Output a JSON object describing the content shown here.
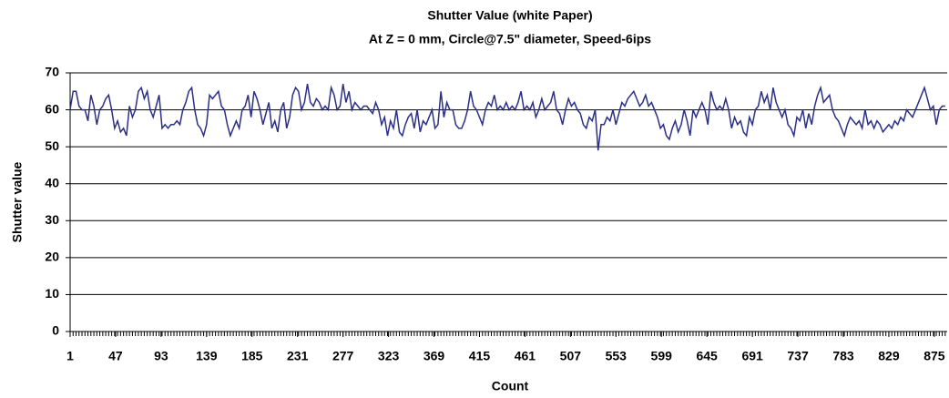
{
  "chart_data": {
    "type": "line",
    "title": "Shutter Value (white Paper)",
    "subtitle": "At Z = 0 mm, Circle@7.5\" diameter, Speed-6ips",
    "x_label": "Count",
    "y_label": "Shutter value",
    "color": "#2b2f86",
    "grid": true,
    "xlim": [
      1,
      888
    ],
    "ylim": [
      0,
      70
    ],
    "yticks": [
      0,
      10,
      20,
      30,
      40,
      50,
      60,
      70
    ],
    "xticks": [
      1,
      47,
      93,
      139,
      185,
      231,
      277,
      323,
      369,
      415,
      461,
      507,
      553,
      599,
      645,
      691,
      737,
      783,
      829,
      875
    ],
    "x": [
      1,
      4,
      7,
      10,
      13,
      16,
      19,
      22,
      25,
      28,
      31,
      34,
      37,
      40,
      43,
      46,
      49,
      52,
      55,
      58,
      61,
      64,
      67,
      70,
      73,
      76,
      79,
      82,
      85,
      88,
      91,
      94,
      97,
      100,
      103,
      106,
      109,
      112,
      115,
      118,
      121,
      124,
      127,
      130,
      133,
      136,
      139,
      142,
      145,
      148,
      151,
      154,
      157,
      160,
      163,
      166,
      169,
      172,
      175,
      178,
      181,
      184,
      187,
      190,
      193,
      196,
      199,
      202,
      205,
      208,
      211,
      214,
      217,
      220,
      223,
      226,
      229,
      232,
      235,
      238,
      241,
      244,
      247,
      250,
      253,
      256,
      259,
      262,
      265,
      268,
      271,
      274,
      277,
      280,
      283,
      286,
      289,
      292,
      295,
      298,
      301,
      304,
      307,
      310,
      313,
      316,
      319,
      322,
      325,
      328,
      331,
      334,
      337,
      340,
      343,
      346,
      349,
      352,
      355,
      358,
      361,
      364,
      367,
      370,
      373,
      376,
      379,
      382,
      385,
      388,
      391,
      394,
      397,
      400,
      403,
      406,
      409,
      412,
      415,
      418,
      421,
      424,
      427,
      430,
      433,
      436,
      439,
      442,
      445,
      448,
      451,
      454,
      457,
      460,
      463,
      466,
      469,
      472,
      475,
      478,
      481,
      484,
      487,
      490,
      493,
      496,
      499,
      502,
      505,
      508,
      511,
      514,
      517,
      520,
      523,
      526,
      529,
      532,
      535,
      538,
      541,
      544,
      547,
      550,
      553,
      556,
      559,
      562,
      565,
      568,
      571,
      574,
      577,
      580,
      583,
      586,
      589,
      592,
      595,
      598,
      601,
      604,
      607,
      610,
      613,
      616,
      619,
      622,
      625,
      628,
      631,
      634,
      637,
      640,
      643,
      646,
      649,
      652,
      655,
      658,
      661,
      664,
      667,
      670,
      673,
      676,
      679,
      682,
      685,
      688,
      691,
      694,
      697,
      700,
      703,
      706,
      709,
      712,
      715,
      718,
      721,
      724,
      727,
      730,
      733,
      736,
      739,
      742,
      745,
      748,
      751,
      754,
      757,
      760,
      763,
      766,
      769,
      772,
      775,
      778,
      781,
      784,
      787,
      790,
      793,
      796,
      799,
      802,
      805,
      808,
      811,
      814,
      817,
      820,
      823,
      826,
      829,
      832,
      835,
      838,
      841,
      844,
      847,
      850,
      853,
      856,
      859,
      862,
      865,
      868,
      871,
      874,
      877,
      880,
      883,
      886
    ],
    "values": [
      60,
      65,
      65,
      61,
      60,
      60,
      57,
      64,
      61,
      56,
      60,
      61,
      63,
      64,
      60,
      55,
      57,
      54,
      55,
      53,
      61,
      58,
      60,
      65,
      66,
      63,
      65,
      60,
      58,
      61,
      64,
      55,
      56,
      55,
      56,
      56,
      57,
      56,
      60,
      62,
      65,
      66,
      60,
      56,
      55,
      53,
      56,
      64,
      63,
      64,
      65,
      61,
      60,
      56,
      53,
      55,
      57,
      55,
      60,
      61,
      64,
      58,
      65,
      63,
      60,
      56,
      59,
      62,
      55,
      57,
      54,
      60,
      62,
      55,
      58,
      64,
      66,
      65,
      60,
      62,
      67,
      62,
      61,
      63,
      62,
      60,
      61,
      60,
      66,
      64,
      60,
      61,
      67,
      62,
      65,
      60,
      62,
      61,
      60,
      61,
      61,
      60,
      59,
      62,
      60,
      56,
      58,
      53,
      57,
      55,
      60,
      54,
      53,
      56,
      58,
      59,
      55,
      60,
      54,
      57,
      56,
      58,
      60,
      55,
      56,
      65,
      58,
      62,
      60,
      60,
      56,
      55,
      55,
      57,
      60,
      65,
      61,
      60,
      58,
      56,
      60,
      62,
      61,
      64,
      60,
      61,
      60,
      62,
      60,
      61,
      60,
      62,
      65,
      60,
      61,
      60,
      62,
      58,
      60,
      63,
      60,
      61,
      62,
      65,
      60,
      59,
      56,
      60,
      63,
      61,
      62,
      60,
      59,
      56,
      55,
      58,
      57,
      60,
      49,
      56,
      56,
      58,
      57,
      60,
      56,
      59,
      62,
      61,
      63,
      64,
      65,
      63,
      61,
      62,
      64,
      61,
      62,
      60,
      58,
      55,
      56,
      53,
      52,
      55,
      57,
      54,
      56,
      60,
      57,
      53,
      60,
      58,
      60,
      62,
      60,
      56,
      65,
      62,
      60,
      61,
      60,
      63,
      60,
      55,
      58,
      56,
      57,
      54,
      53,
      58,
      56,
      60,
      61,
      65,
      62,
      64,
      60,
      66,
      62,
      60,
      58,
      60,
      56,
      55,
      53,
      58,
      57,
      60,
      55,
      59,
      56,
      61,
      64,
      66,
      62,
      63,
      64,
      60,
      58,
      57,
      55,
      53,
      56,
      58,
      57,
      56,
      57,
      55,
      60,
      56,
      57,
      55,
      57,
      56,
      54,
      55,
      56,
      55,
      57,
      56,
      58,
      57,
      60,
      59,
      58,
      60,
      62,
      64,
      66,
      63,
      60,
      61,
      56,
      60,
      61,
      61
    ]
  }
}
